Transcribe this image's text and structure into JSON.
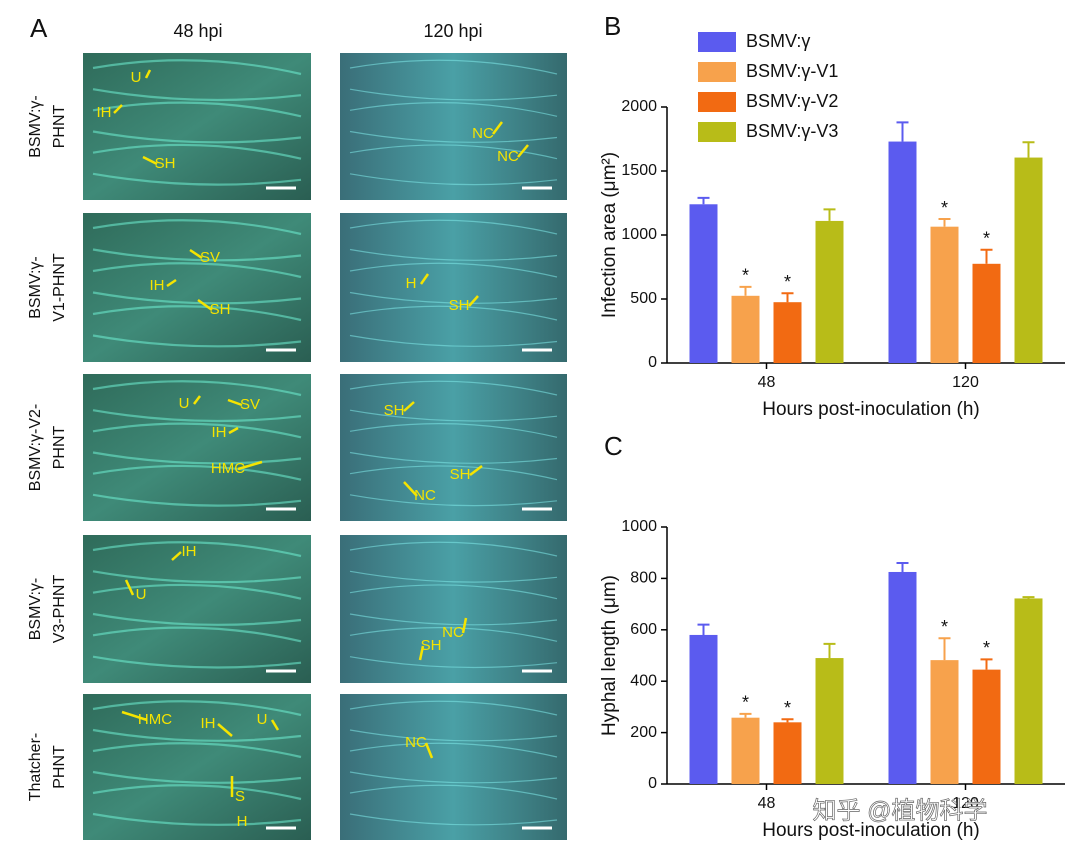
{
  "panel_a": {
    "label": "A",
    "columns": [
      "48 hpi",
      "120 hpi"
    ],
    "rows": [
      {
        "label": [
          "BSMV:γ-",
          "PHNT"
        ],
        "annotations": [
          [
            "U",
            "IH",
            "SH"
          ],
          [
            "NC",
            "NC"
          ]
        ]
      },
      {
        "label": [
          "BSMV:γ-",
          "V1-PHNT"
        ],
        "annotations": [
          [
            "SV",
            "IH",
            "SH"
          ],
          [
            "H",
            "SH"
          ]
        ]
      },
      {
        "label": [
          "BSMV:γ-V2-",
          "PHNT"
        ],
        "annotations": [
          [
            "U",
            "SV",
            "IH",
            "HMC"
          ],
          [
            "SH",
            "SH",
            "NC"
          ]
        ]
      },
      {
        "label": [
          "BSMV:γ-",
          "V3-PHNT"
        ],
        "annotations": [
          [
            "IH",
            "U"
          ],
          [
            "NC",
            "SH"
          ]
        ]
      },
      {
        "label": [
          "Thatcher-",
          "PHNT"
        ],
        "annotations": [
          [
            "HMC",
            "IH",
            "U",
            "S",
            "H"
          ],
          [
            "NC"
          ]
        ]
      }
    ]
  },
  "chart_data": [
    {
      "type": "bar",
      "label": "B",
      "y_label": "Infection area (μm²)",
      "x_label": "Hours post-inoculation (h)",
      "categories": [
        "48",
        "120"
      ],
      "ylim": [
        0,
        2000
      ],
      "yticks": [
        0,
        500,
        1000,
        1500,
        2000
      ],
      "legend": true,
      "series": [
        {
          "name": "BSMV:γ",
          "color": "#5b5bef",
          "values": [
            1240,
            1730
          ],
          "errors": [
            50,
            150
          ]
        },
        {
          "name": "BSMV:γ-V1",
          "color": "#f7a24c",
          "values": [
            525,
            1065
          ],
          "errors": [
            70,
            60
          ],
          "labels": [
            "*",
            "*"
          ]
        },
        {
          "name": "BSMV:γ-V2",
          "color": "#f26a12",
          "values": [
            475,
            775
          ],
          "errors": [
            70,
            110
          ],
          "labels": [
            "*",
            "*"
          ]
        },
        {
          "name": "BSMV:γ-V3",
          "color": "#b8bc18",
          "values": [
            1110,
            1605
          ],
          "errors": [
            90,
            120
          ]
        }
      ]
    },
    {
      "type": "bar",
      "label": "C",
      "y_label": "Hyphal length (μm)",
      "x_label": "Hours post-inoculation (h)",
      "categories": [
        "48",
        "120"
      ],
      "ylim": [
        0,
        1000
      ],
      "yticks": [
        0,
        200,
        400,
        600,
        800,
        1000
      ],
      "legend": false,
      "series": [
        {
          "name": "BSMV:γ",
          "color": "#5b5bef",
          "values": [
            580,
            825
          ],
          "errors": [
            40,
            35
          ]
        },
        {
          "name": "BSMV:γ-V1",
          "color": "#f7a24c",
          "values": [
            258,
            482
          ],
          "errors": [
            15,
            85
          ],
          "labels": [
            "*",
            "*"
          ]
        },
        {
          "name": "BSMV:γ-V2",
          "color": "#f26a12",
          "values": [
            240,
            445
          ],
          "errors": [
            12,
            40
          ],
          "labels": [
            "*",
            "*"
          ]
        },
        {
          "name": "BSMV:γ-V3",
          "color": "#b8bc18",
          "values": [
            490,
            722
          ],
          "errors": [
            55,
            5
          ]
        }
      ]
    }
  ],
  "watermark": "知乎 @植物科学"
}
